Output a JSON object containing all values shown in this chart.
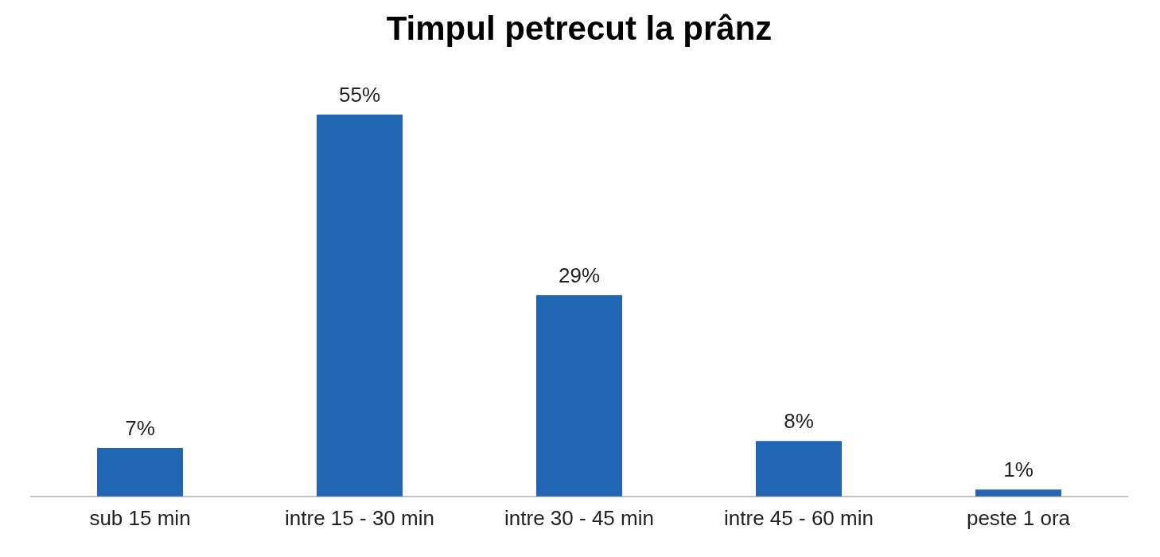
{
  "chart_data": {
    "type": "bar",
    "title": "Timpul petrecut la prânz",
    "categories": [
      "sub 15 min",
      "intre 15 - 30 min",
      "intre 30 - 45 min",
      "intre 45 - 60 min",
      "peste 1 ora"
    ],
    "values": [
      7,
      55,
      29,
      8,
      1
    ],
    "value_labels": [
      "7%",
      "55%",
      "29%",
      "8%",
      "1%"
    ],
    "color": "#2166b3"
  }
}
